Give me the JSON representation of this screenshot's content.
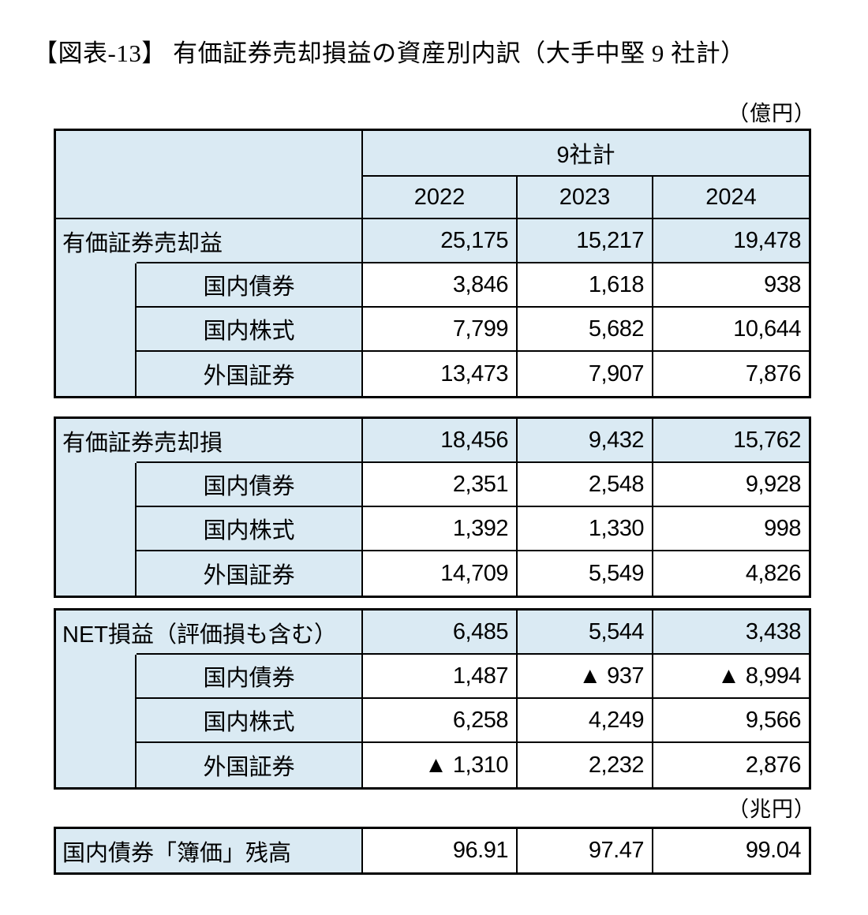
{
  "page": {
    "title": "【図表-13】 有価証券売却損益の資産別内訳（大手中堅 9 社計）",
    "unit_top": "（億円）",
    "unit_bottom": "（兆円）"
  },
  "table": {
    "group_header": "9社計",
    "years": [
      "2022",
      "2023",
      "2024"
    ],
    "sections": [
      {
        "label": "有価証券売却益",
        "values": [
          "25,175",
          "15,217",
          "19,478"
        ],
        "rows": [
          {
            "label": "国内債券",
            "values": [
              "3,846",
              "1,618",
              "938"
            ]
          },
          {
            "label": "国内株式",
            "values": [
              "7,799",
              "5,682",
              "10,644"
            ]
          },
          {
            "label": "外国証券",
            "values": [
              "13,473",
              "7,907",
              "7,876"
            ]
          }
        ]
      },
      {
        "label": "有価証券売却損",
        "values": [
          "18,456",
          "9,432",
          "15,762"
        ],
        "rows": [
          {
            "label": "国内債券",
            "values": [
              "2,351",
              "2,548",
              "9,928"
            ]
          },
          {
            "label": "国内株式",
            "values": [
              "1,392",
              "1,330",
              "998"
            ]
          },
          {
            "label": "外国証券",
            "values": [
              "14,709",
              "5,549",
              "4,826"
            ]
          }
        ]
      },
      {
        "label": "NET損益（評価損も含む）",
        "values": [
          "6,485",
          "5,544",
          "3,438"
        ],
        "rows": [
          {
            "label": "国内債券",
            "values": [
              "1,487",
              "▲ 937",
              "▲ 8,994"
            ]
          },
          {
            "label": "国内株式",
            "values": [
              "6,258",
              "4,249",
              "9,566"
            ]
          },
          {
            "label": "外国証券",
            "values": [
              "▲ 1,310",
              "2,232",
              "2,876"
            ]
          }
        ]
      }
    ],
    "footer_row": {
      "label": "国内債券「簿価」残高",
      "values": [
        "96.91",
        "97.47",
        "99.04"
      ]
    }
  },
  "colors": {
    "header_fill": "#daeaf3",
    "border": "#000000",
    "background": "#ffffff"
  },
  "chart_data": {
    "type": "table",
    "title": "有価証券売却損益の資産別内訳（大手中堅9社計）",
    "unit": "億円（最下行のみ兆円）",
    "columns": [
      "2022",
      "2023",
      "2024"
    ],
    "group_header": "9社計",
    "rows": [
      {
        "label": "有価証券売却益",
        "values": [
          25175,
          15217,
          19478
        ]
      },
      {
        "label": "有価証券売却益/国内債券",
        "values": [
          3846,
          1618,
          938
        ]
      },
      {
        "label": "有価証券売却益/国内株式",
        "values": [
          7799,
          5682,
          10644
        ]
      },
      {
        "label": "有価証券売却益/外国証券",
        "values": [
          13473,
          7907,
          7876
        ]
      },
      {
        "label": "有価証券売却損",
        "values": [
          18456,
          9432,
          15762
        ]
      },
      {
        "label": "有価証券売却損/国内債券",
        "values": [
          2351,
          2548,
          9928
        ]
      },
      {
        "label": "有価証券売却損/国内株式",
        "values": [
          1392,
          1330,
          998
        ]
      },
      {
        "label": "有価証券売却損/外国証券",
        "values": [
          14709,
          5549,
          4826
        ]
      },
      {
        "label": "NET損益（評価損も含む）",
        "values": [
          6485,
          5544,
          3438
        ]
      },
      {
        "label": "NET損益/国内債券",
        "values": [
          1487,
          -937,
          -8994
        ]
      },
      {
        "label": "NET損益/国内株式",
        "values": [
          6258,
          4249,
          9566
        ]
      },
      {
        "label": "NET損益/外国証券",
        "values": [
          -1310,
          2232,
          2876
        ]
      },
      {
        "label": "国内債券「簿価」残高（兆円）",
        "values": [
          96.91,
          97.47,
          99.04
        ]
      }
    ],
    "negative_marker": "▲"
  }
}
